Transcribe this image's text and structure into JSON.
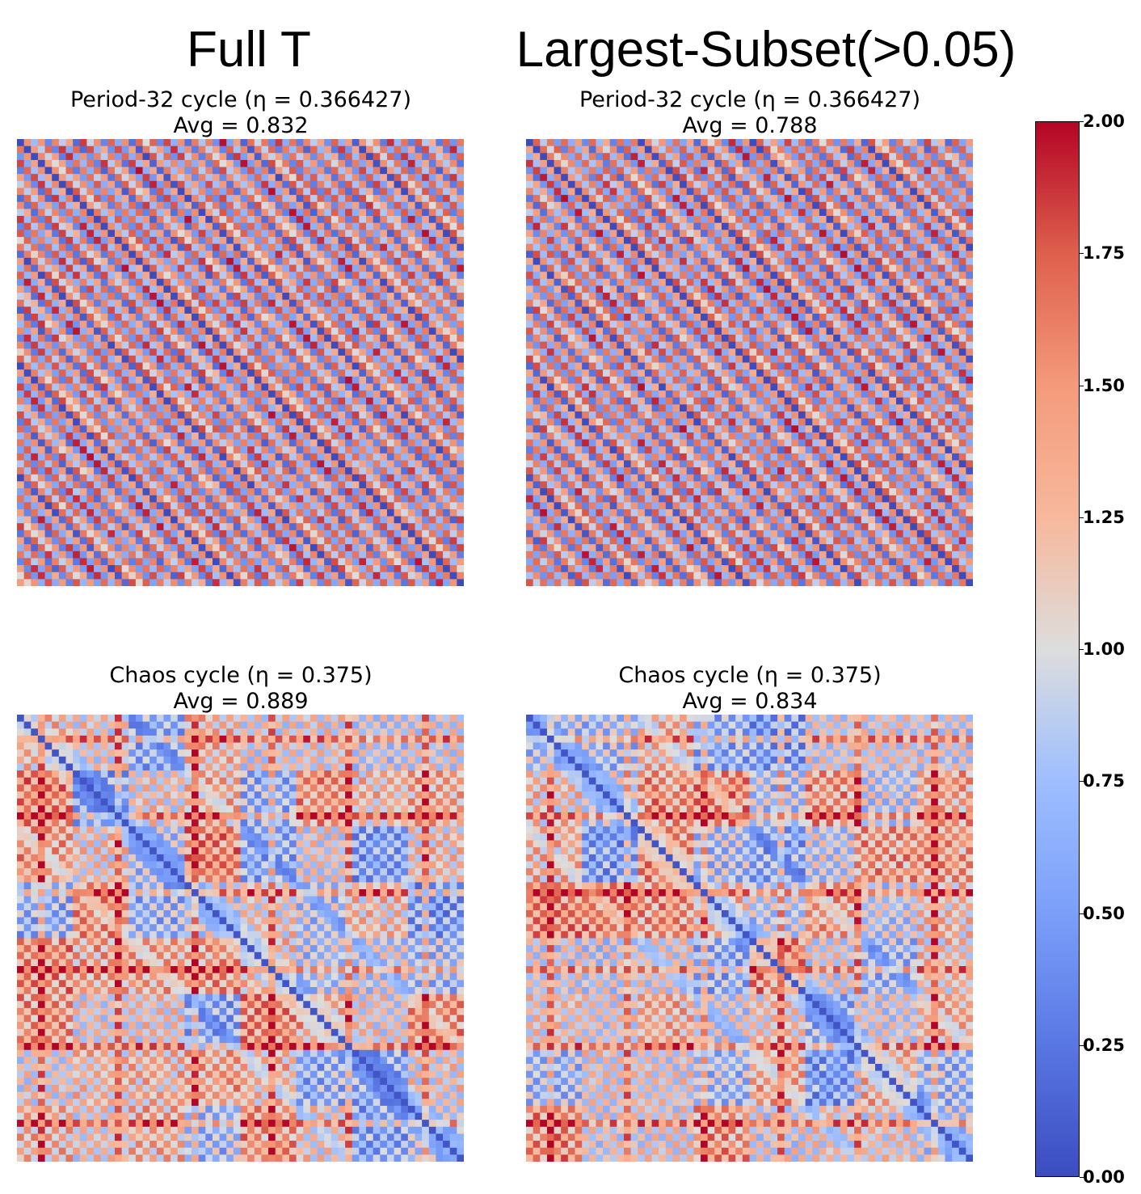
{
  "headings": {
    "left": "Full T",
    "right": "Largest-Subset(>0.05)"
  },
  "chart_data": [
    {
      "type": "heatmap",
      "title": "Period-32 cycle (η = 0.366427)",
      "subtitle": "Avg = 0.832",
      "matrix_size": 64,
      "pattern": "period",
      "value_range": [
        0,
        2
      ],
      "colormap": "coolwarm"
    },
    {
      "type": "heatmap",
      "title": "Period-32 cycle (η = 0.366427)",
      "subtitle": "Avg = 0.788",
      "matrix_size": 64,
      "pattern": "period",
      "value_range": [
        0,
        2
      ],
      "colormap": "coolwarm"
    },
    {
      "type": "heatmap",
      "title": "Chaos cycle (η = 0.375)",
      "subtitle": "Avg = 0.889",
      "matrix_size": 64,
      "pattern": "chaos",
      "value_range": [
        0,
        2
      ],
      "colormap": "coolwarm"
    },
    {
      "type": "heatmap",
      "title": "Chaos cycle (η = 0.375)",
      "subtitle": "Avg = 0.834",
      "matrix_size": 64,
      "pattern": "chaos",
      "value_range": [
        0,
        2
      ],
      "colormap": "coolwarm"
    }
  ],
  "colorbar": {
    "min": 0,
    "max": 2,
    "ticks": [
      "0.00",
      "0.25",
      "0.50",
      "0.75",
      "1.00",
      "1.25",
      "1.50",
      "1.75",
      "2.00"
    ],
    "colors": {
      "low": "#3b4cc0",
      "mid": "#dddddd",
      "high": "#b40426"
    }
  }
}
